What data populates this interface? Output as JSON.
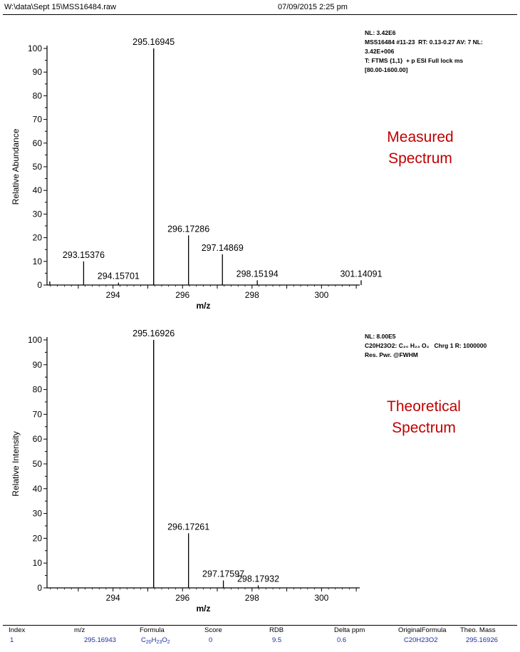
{
  "header": {
    "path": "W:\\data\\Sept 15\\MSS16484.raw",
    "datetime": "07/09/2015 2:25 pm"
  },
  "info_top": "NL: 3.42E6\nMSS16484 #11-23  RT: 0.13-0.27 AV: 7 NL:\n3.42E+006\nT: FTMS {1,1}  + p ESI Full lock ms\n[80.00-1600.00]",
  "info_bottom": "NL: 8.00E5\nC20H23O2: C₂₀ H₂₃ O₂   Chrg 1 R: 1000000\nRes. Pwr. @FWHM",
  "caption_top": {
    "line1": "Measured",
    "line2": "Spectrum"
  },
  "caption_bottom": {
    "line1": "Theoretical",
    "line2": "Spectrum"
  },
  "chart_data": [
    {
      "type": "bar",
      "title": "",
      "xlabel": "m/z",
      "ylabel": "Relative Abundance",
      "xlim": [
        292.1,
        301.1
      ],
      "ylim": [
        0,
        100
      ],
      "x_ticks": [
        294,
        296,
        298,
        300
      ],
      "y_ticks": [
        0,
        10,
        20,
        30,
        40,
        50,
        60,
        70,
        80,
        90,
        100
      ],
      "peaks": [
        {
          "x": 292.18,
          "y": 1.5
        },
        {
          "x": 293.15376,
          "y": 10,
          "label": "293.15376"
        },
        {
          "x": 294.15701,
          "y": 1,
          "label": "294.15701"
        },
        {
          "x": 295.16945,
          "y": 100,
          "label": "295.16945"
        },
        {
          "x": 296.17286,
          "y": 21,
          "label": "296.17286"
        },
        {
          "x": 297.14869,
          "y": 13,
          "label": "297.14869"
        },
        {
          "x": 298.15194,
          "y": 2,
          "label": "298.15194"
        },
        {
          "x": 301.14091,
          "y": 2,
          "label": "301.14091"
        }
      ]
    },
    {
      "type": "bar",
      "title": "",
      "xlabel": "m/z",
      "ylabel": "Relative Intensity",
      "xlim": [
        292.1,
        301.1
      ],
      "ylim": [
        0,
        100
      ],
      "x_ticks": [
        294,
        296,
        298,
        300
      ],
      "y_ticks": [
        0,
        10,
        20,
        30,
        40,
        50,
        60,
        70,
        80,
        90,
        100
      ],
      "peaks": [
        {
          "x": 295.16926,
          "y": 100,
          "label": "295.16926"
        },
        {
          "x": 296.17261,
          "y": 22,
          "label": "296.17261"
        },
        {
          "x": 297.17597,
          "y": 3,
          "label": "297.17597"
        },
        {
          "x": 298.17932,
          "y": 1,
          "label": "298.17932"
        }
      ]
    }
  ],
  "table": {
    "headers": [
      "Index",
      "m/z",
      "Formula",
      "Score",
      "RDB",
      "Delta ppm",
      "OriginalFormula",
      "Theo. Mass"
    ],
    "row": {
      "index": "1",
      "mz": "295.16943",
      "formula": {
        "c": "C",
        "c_n": "20",
        "h": "H",
        "h_n": "23",
        "o": "O",
        "o_n": "2"
      },
      "score": "0",
      "rdb": "9.5",
      "delta_ppm": "0.6",
      "original_formula": "C20H23O2",
      "theo_mass": "295.16926"
    }
  }
}
